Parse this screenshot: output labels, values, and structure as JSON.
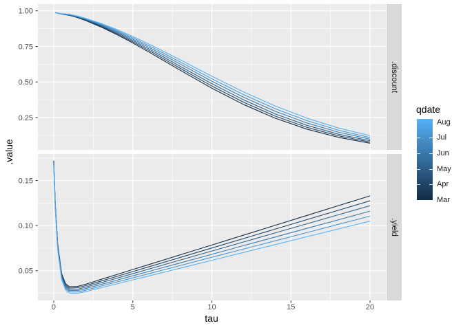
{
  "figure": {
    "background": "#ffffff",
    "panel_bg": "#EBEBEB",
    "strip_bg": "#D9D9D9",
    "grid_color": "#FFFFFF",
    "axis_text_color": "#4D4D4D",
    "axis_tick_color": "#333333"
  },
  "legend": {
    "title": "qdate",
    "labels_top_to_bottom": [
      "Aug",
      "Jul",
      "Jun",
      "May",
      "Apr",
      "Mar"
    ],
    "gradient_top": "#56B1F7",
    "gradient_bottom": "#132B43"
  },
  "chart_data": {
    "type": "line",
    "title": "",
    "xlabel": "tau",
    "ylabel": ".value",
    "legend_title": "qdate",
    "legend_position": "right",
    "grid": true,
    "x_axis": {
      "lim": [
        -1,
        21
      ],
      "major_ticks": [
        0,
        5,
        10,
        15,
        20
      ],
      "tick_labels": [
        "0",
        "5",
        "10",
        "15",
        "20"
      ],
      "minor_ticks": [
        2.5,
        7.5,
        12.5,
        17.5
      ]
    },
    "series_colors": {
      "Mar": "#132B43",
      "Apr": "#204567",
      "May": "#2E618B",
      "Jun": "#3B7BAF",
      "Jul": "#4896D3",
      "Aug": "#56B1F7"
    },
    "facets": [
      {
        "name": ".discount",
        "ylim": [
          0.023,
          1.047
        ],
        "major_ticks": [
          1.0,
          0.75,
          0.5,
          0.25
        ],
        "tick_labels": [
          "1.00",
          "0.75",
          "0.50",
          "0.25"
        ],
        "minor_ticks": [
          0.875,
          0.625,
          0.375,
          0.125
        ],
        "x": [
          0.1,
          0.5,
          1,
          1.5,
          2,
          3,
          4,
          5,
          6,
          7,
          8,
          10,
          12,
          14,
          16,
          18,
          20
        ],
        "series": [
          {
            "name": "Mar",
            "values": [
              0.9877,
              0.9769,
              0.9683,
              0.9524,
              0.9326,
              0.8859,
              0.8326,
              0.774,
              0.7116,
              0.6472,
              0.5823,
              0.4561,
              0.3421,
              0.2456,
              0.1688,
              0.111,
              0.0699
            ]
          },
          {
            "name": "Apr",
            "values": [
              0.9878,
              0.9776,
              0.9698,
              0.9544,
              0.9356,
              0.8909,
              0.8396,
              0.7828,
              0.7224,
              0.6596,
              0.596,
              0.4714,
              0.358,
              0.2604,
              0.1817,
              0.1217,
              0.0781
            ]
          },
          {
            "name": "May",
            "values": [
              0.9879,
              0.9782,
              0.9711,
              0.9567,
              0.9388,
              0.8957,
              0.8464,
              0.7918,
              0.7333,
              0.6722,
              0.61,
              0.4878,
              0.3747,
              0.2762,
              0.1959,
              0.1332,
              0.0872
            ]
          },
          {
            "name": "Jun",
            "values": [
              0.9881,
              0.9788,
              0.9725,
              0.9589,
              0.9418,
              0.9011,
              0.8538,
              0.8013,
              0.7448,
              0.6859,
              0.6258,
              0.5056,
              0.3931,
              0.2945,
              0.2122,
              0.1474,
              0.0983
            ]
          },
          {
            "name": "Jul",
            "values": [
              0.9882,
              0.9795,
              0.9738,
              0.9612,
              0.945,
              0.906,
              0.8607,
              0.8105,
              0.7561,
              0.699,
              0.6404,
              0.5226,
              0.4115,
              0.3124,
              0.2287,
              0.1612,
              0.1097
            ]
          },
          {
            "name": "Aug",
            "values": [
              0.9883,
              0.9801,
              0.9752,
              0.9633,
              0.948,
              0.9109,
              0.868,
              0.8198,
              0.7675,
              0.7124,
              0.6555,
              0.5406,
              0.4307,
              0.3313,
              0.2462,
              0.1767,
              0.1225
            ]
          }
        ]
      },
      {
        "name": ".yield",
        "ylim": [
          0.017,
          0.1794
        ],
        "major_ticks": [
          0.15,
          0.1,
          0.05
        ],
        "tick_labels": [
          "0.15",
          "0.10",
          "0.05"
        ],
        "minor_ticks": [
          0.175,
          0.125,
          0.075,
          0.025
        ],
        "x": [
          0,
          0.1,
          0.25,
          0.5,
          0.75,
          1,
          1.5,
          2,
          2.5,
          3,
          4,
          5,
          6,
          8,
          10,
          12,
          14,
          16,
          18,
          20
        ],
        "series": [
          {
            "name": "Mar",
            "values": [
              0.172,
              0.1237,
              0.0798,
              0.0468,
              0.0355,
              0.0322,
              0.0325,
              0.0349,
              0.0376,
              0.0404,
              0.0458,
              0.0513,
              0.0567,
              0.0676,
              0.0785,
              0.0894,
              0.1003,
              0.1112,
              0.1221,
              0.133
            ]
          },
          {
            "name": "Apr",
            "values": [
              0.1708,
              0.1225,
              0.0786,
              0.0454,
              0.0341,
              0.0307,
              0.0311,
              0.0333,
              0.0359,
              0.0385,
              0.0437,
              0.049,
              0.0542,
              0.0647,
              0.0752,
              0.0856,
              0.0961,
              0.1066,
              0.117,
              0.1275
            ]
          },
          {
            "name": "May",
            "values": [
              0.1696,
              0.1213,
              0.0774,
              0.0441,
              0.0328,
              0.0293,
              0.0295,
              0.0316,
              0.0342,
              0.0367,
              0.0417,
              0.0467,
              0.0517,
              0.0618,
              0.0718,
              0.0818,
              0.0919,
              0.1019,
              0.112,
              0.122
            ]
          },
          {
            "name": "Jun",
            "values": [
              0.1684,
              0.1201,
              0.0761,
              0.0428,
              0.0314,
              0.0279,
              0.028,
              0.03,
              0.0324,
              0.0347,
              0.0395,
              0.0443,
              0.0491,
              0.0586,
              0.0682,
              0.0778,
              0.0873,
              0.0969,
              0.1064,
              0.116
            ]
          },
          {
            "name": "Jul",
            "values": [
              0.1672,
              0.1189,
              0.0748,
              0.0415,
              0.03,
              0.0265,
              0.0264,
              0.0283,
              0.0306,
              0.0329,
              0.0375,
              0.042,
              0.0466,
              0.0557,
              0.0649,
              0.074,
              0.0831,
              0.0922,
              0.1014,
              0.1105
            ]
          },
          {
            "name": "Aug",
            "values": [
              0.166,
              0.1176,
              0.0736,
              0.0402,
              0.0287,
              0.0251,
              0.0249,
              0.0267,
              0.0289,
              0.0311,
              0.0354,
              0.0398,
              0.0441,
              0.0528,
              0.0615,
              0.0702,
              0.0789,
              0.0876,
              0.0963,
              0.105
            ]
          }
        ]
      }
    ]
  }
}
